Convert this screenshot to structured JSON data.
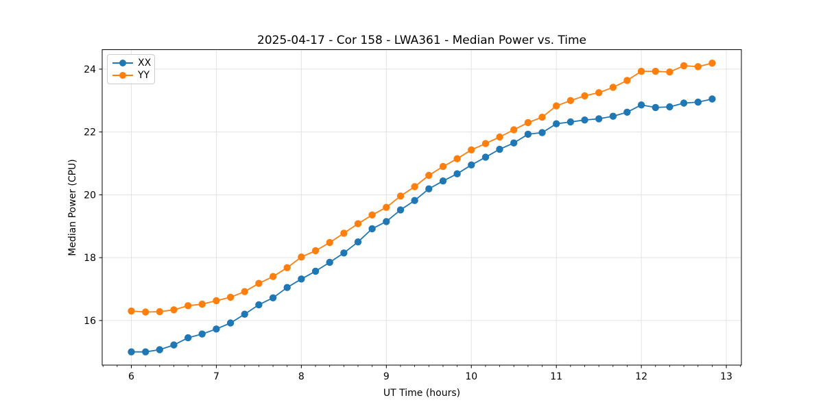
{
  "chart_data": {
    "type": "line",
    "title": "2025-04-17 - Cor 158 - LWA361 - Median Power vs. Time",
    "xlabel": "UT Time (hours)",
    "ylabel": "Median Power (CPU)",
    "xlim": [
      5.657,
      13.177
    ],
    "ylim": [
      14.58,
      24.62
    ],
    "xticks": [
      6,
      7,
      8,
      9,
      10,
      11,
      12,
      13
    ],
    "yticks": [
      16,
      18,
      20,
      22,
      24
    ],
    "x_minor_divisions": 6,
    "grid": "major",
    "grid_color": "#e3e3e3",
    "legend_position": "upper left",
    "x": [
      6.0,
      6.167,
      6.333,
      6.5,
      6.667,
      6.833,
      7.0,
      7.167,
      7.333,
      7.5,
      7.667,
      7.833,
      8.0,
      8.167,
      8.333,
      8.5,
      8.667,
      8.833,
      9.0,
      9.167,
      9.333,
      9.5,
      9.667,
      9.833,
      10.0,
      10.167,
      10.333,
      10.5,
      10.667,
      10.833,
      11.0,
      11.167,
      11.333,
      11.5,
      11.667,
      11.833,
      12.0,
      12.167,
      12.333,
      12.5,
      12.667,
      12.833
    ],
    "series": [
      {
        "name": "XX",
        "color": "#1f77b4",
        "values": [
          15.0,
          15.0,
          15.07,
          15.22,
          15.45,
          15.57,
          15.73,
          15.92,
          16.2,
          16.5,
          16.72,
          17.05,
          17.32,
          17.57,
          17.85,
          18.15,
          18.5,
          18.92,
          19.15,
          19.52,
          19.82,
          20.19,
          20.44,
          20.67,
          20.95,
          21.2,
          21.45,
          21.65,
          21.93,
          21.98,
          22.26,
          22.32,
          22.38,
          22.42,
          22.5,
          22.63,
          22.86,
          22.78,
          22.8,
          22.92,
          22.95,
          23.05
        ]
      },
      {
        "name": "YY",
        "color": "#ff7f0e",
        "values": [
          16.3,
          16.27,
          16.28,
          16.34,
          16.47,
          16.52,
          16.63,
          16.74,
          16.92,
          17.18,
          17.4,
          17.68,
          18.02,
          18.22,
          18.48,
          18.78,
          19.08,
          19.36,
          19.6,
          19.96,
          20.26,
          20.62,
          20.9,
          21.15,
          21.43,
          21.63,
          21.84,
          22.07,
          22.3,
          22.47,
          22.83,
          23.0,
          23.15,
          23.25,
          23.42,
          23.64,
          23.93,
          23.93,
          23.91,
          24.11,
          24.08,
          24.19
        ]
      }
    ]
  }
}
